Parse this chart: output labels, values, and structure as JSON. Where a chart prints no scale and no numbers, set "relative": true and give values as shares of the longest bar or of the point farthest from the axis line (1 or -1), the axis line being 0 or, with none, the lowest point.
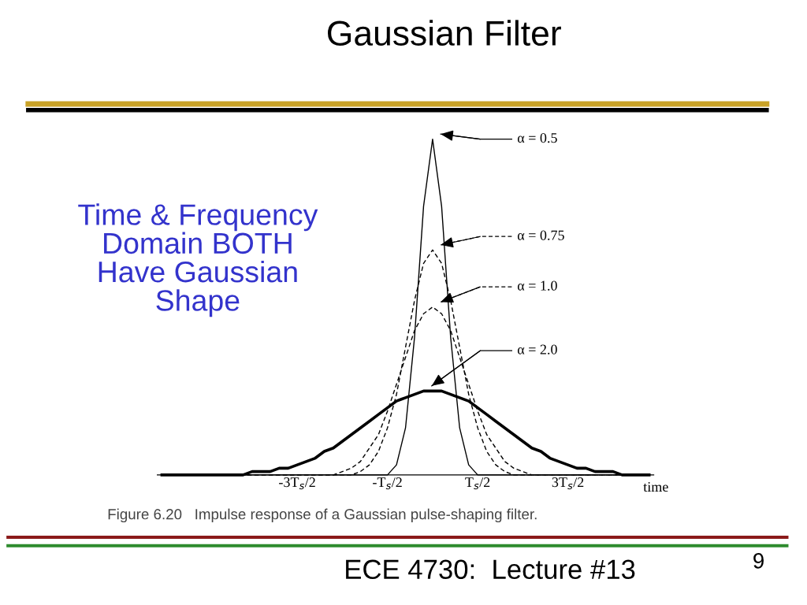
{
  "chart_data": {
    "type": "line",
    "title": "Gaussian Filter",
    "xlabel": "time",
    "relative": true,
    "grid": false,
    "legend": "right",
    "marker": "none",
    "categories": [
      null,
      null,
      null,
      null,
      null,
      null,
      null,
      null,
      null,
      null,
      null,
      null,
      null,
      null,
      null,
      "-3T$_{s}$/2",
      null,
      null,
      null,
      null,
      null,
      null,
      null,
      null,
      null,
      "-T$_{s}$/2",
      null,
      null,
      null,
      null,
      null,
      null,
      null,
      null,
      null,
      "T$_{s}$/2",
      null,
      null,
      null,
      null,
      null,
      null,
      null,
      null,
      null,
      "3T$_{s}$/2",
      null,
      null,
      null,
      null,
      null,
      null,
      null,
      null,
      null
    ],
    "series": [
      {
        "name": "α = 0.5",
        "color": "#000000",
        "line_style": "solid",
        "values": [
          0,
          0,
          0,
          0,
          0,
          0,
          0,
          0,
          0,
          0,
          0,
          0,
          0,
          0,
          0,
          0,
          0,
          0,
          0,
          0,
          0,
          0,
          0,
          0,
          0,
          0,
          0.03,
          0.14,
          0.41,
          0.8,
          1,
          0.8,
          0.41,
          0.14,
          0.03,
          0,
          0,
          0,
          0,
          0,
          0,
          0,
          0,
          0,
          0,
          0,
          0,
          0,
          0,
          0,
          0,
          0,
          0,
          0,
          0
        ]
      },
      {
        "name": "α = 0.75",
        "color": "#000000",
        "line_style": "dashed",
        "values": [
          0,
          0,
          0,
          0,
          0,
          0,
          0,
          0,
          0,
          0,
          0,
          0,
          0,
          0,
          0,
          0,
          0,
          0,
          0,
          0,
          0,
          0,
          0.01,
          0.03,
          0.07,
          0.14,
          0.24,
          0.38,
          0.52,
          0.63,
          0.67,
          0.63,
          0.52,
          0.38,
          0.24,
          0.14,
          0.07,
          0.03,
          0.01,
          0,
          0,
          0,
          0,
          0,
          0,
          0,
          0,
          0,
          0,
          0,
          0,
          0,
          0,
          0,
          0
        ]
      },
      {
        "name": "α = 1.0",
        "color": "#000000",
        "line_style": "dashed",
        "values": [
          0,
          0,
          0,
          0,
          0,
          0,
          0,
          0,
          0,
          0,
          0,
          0,
          0,
          0,
          0,
          0,
          0,
          0,
          0,
          0,
          0.01,
          0.02,
          0.04,
          0.08,
          0.12,
          0.19,
          0.27,
          0.35,
          0.43,
          0.48,
          0.5,
          0.48,
          0.43,
          0.35,
          0.27,
          0.19,
          0.12,
          0.08,
          0.04,
          0.02,
          0.01,
          0,
          0,
          0,
          0,
          0,
          0,
          0,
          0,
          0,
          0,
          0,
          0,
          0,
          0
        ]
      },
      {
        "name": "α = 2.0",
        "color": "#000000",
        "line_style": "solid",
        "values": [
          0,
          0,
          0,
          0,
          0,
          0,
          0,
          0,
          0,
          0,
          0.01,
          0.01,
          0.01,
          0.02,
          0.02,
          0.03,
          0.04,
          0.05,
          0.07,
          0.08,
          0.1,
          0.12,
          0.14,
          0.16,
          0.18,
          0.2,
          0.22,
          0.23,
          0.24,
          0.25,
          0.25,
          0.25,
          0.24,
          0.23,
          0.22,
          0.2,
          0.18,
          0.16,
          0.14,
          0.12,
          0.1,
          0.08,
          0.07,
          0.05,
          0.04,
          0.03,
          0.02,
          0.02,
          0.01,
          0.01,
          0.01,
          0,
          0,
          0,
          0
        ]
      }
    ],
    "annotations": [
      "Time & Frequency\nDomain BOTH\nHave Gaussian\nShape",
      "Figure 6.20   Impulse response of a Gaussian pulse-shaping filter.",
      "ECE 4730:  Lecture #13",
      "9"
    ]
  }
}
